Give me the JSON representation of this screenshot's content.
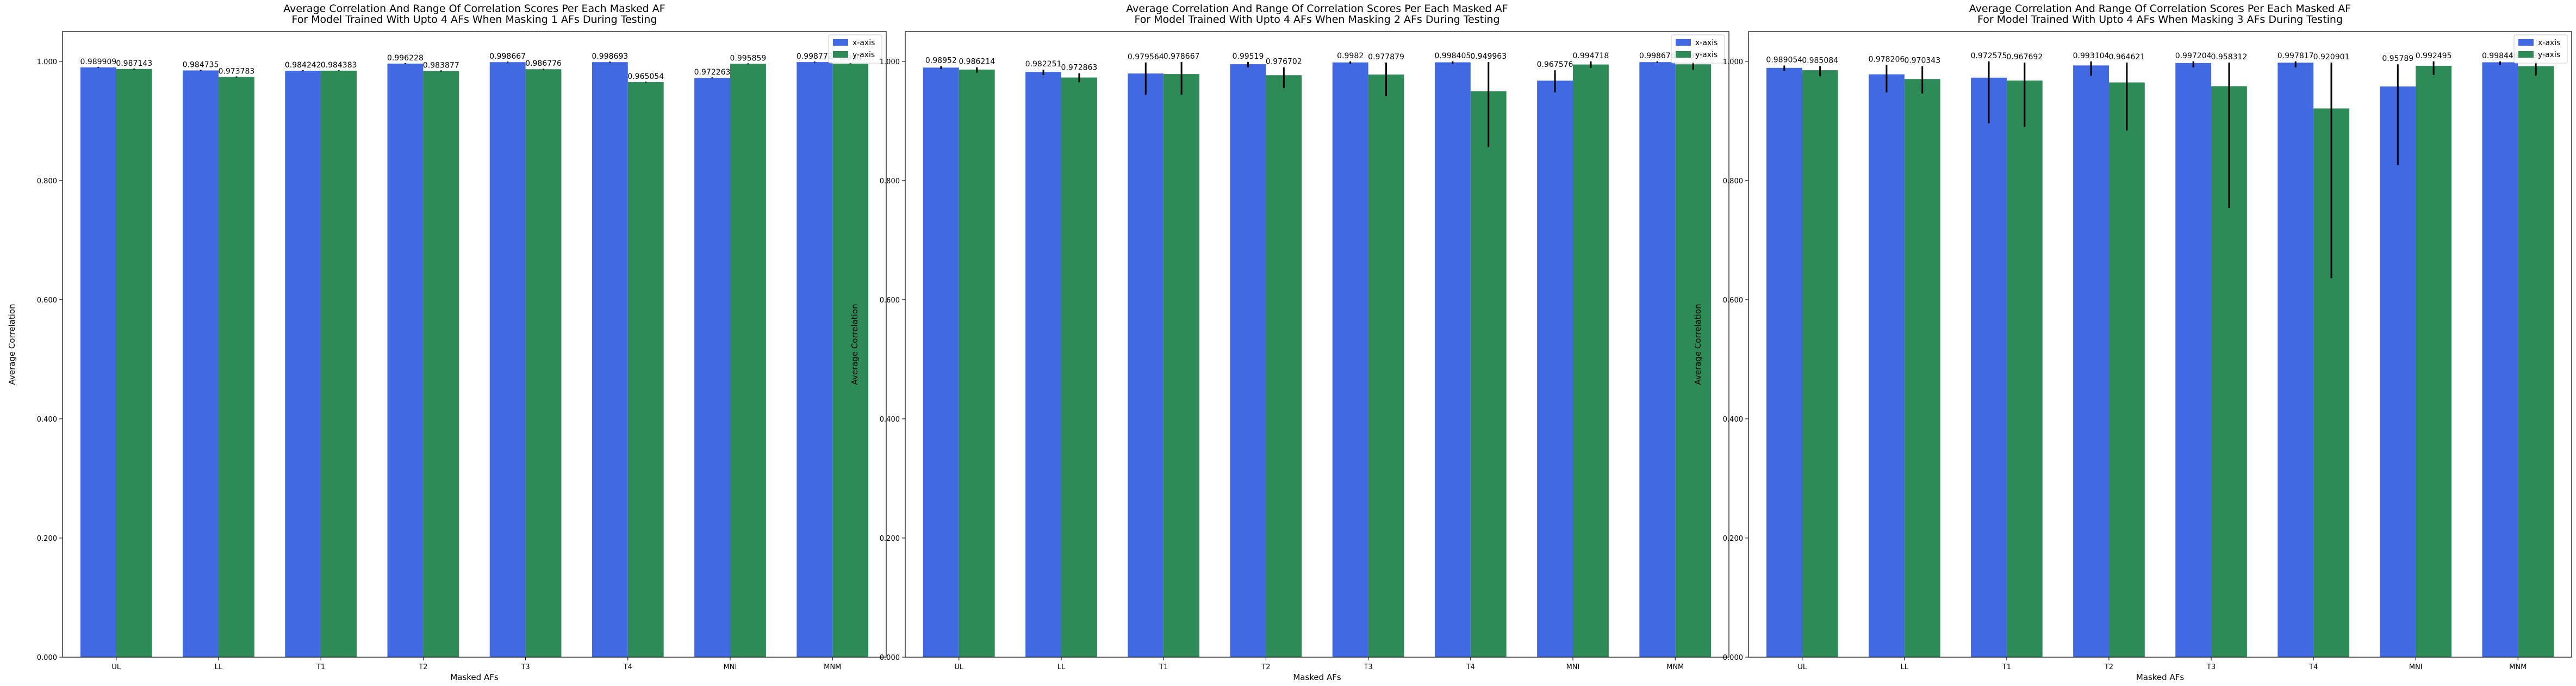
{
  "chart_data": [
    {
      "type": "bar",
      "title_lines": [
        "Average Correlation And Range Of Correlation Scores Per Each Masked AF",
        "For Model Trained With Upto 4 AFs When Masking 1 AFs During Testing"
      ],
      "xlabel": "Masked AFs",
      "ylabel": "Average Correlation",
      "ylim": [
        0,
        1.05
      ],
      "yticks": [
        "0.000",
        "0.200",
        "0.400",
        "0.600",
        "0.800",
        "1.000"
      ],
      "categories": [
        "UL",
        "LL",
        "T1",
        "T2",
        "T3",
        "T4",
        "MNI",
        "MNM"
      ],
      "legend_position": "top-right",
      "series": [
        {
          "name": "x-axis",
          "color": "#4169E1",
          "values": [
            0.989909,
            0.984735,
            0.984242,
            0.996228,
            0.998667,
            0.998693,
            0.972263,
            0.998772
          ],
          "labels": [
            "0.989909",
            "0.984735",
            "0.984242",
            "0.996228",
            "0.998667",
            "0.998693",
            "0.972263",
            "0.998772"
          ],
          "err_low": [
            0.989909,
            0.984735,
            0.984242,
            0.996228,
            0.998667,
            0.998693,
            0.972263,
            0.998772
          ],
          "err_high": [
            0.989909,
            0.984735,
            0.984242,
            0.996228,
            0.998667,
            0.998693,
            0.972263,
            0.998772
          ]
        },
        {
          "name": "y-axis",
          "color": "#2E8B57",
          "values": [
            0.987143,
            0.973783,
            0.984383,
            0.983877,
            0.986776,
            0.965054,
            0.995859,
            0.996
          ],
          "labels": [
            "0.987143",
            "0.973783",
            "0.984383",
            "0.983877",
            "0.986776",
            "0.965054",
            "0.995859",
            "0.996"
          ],
          "err_low": [
            0.987143,
            0.973783,
            0.984383,
            0.983877,
            0.986776,
            0.965054,
            0.995859,
            0.996
          ],
          "err_high": [
            0.987143,
            0.973783,
            0.984383,
            0.983877,
            0.986776,
            0.965054,
            0.995859,
            0.996
          ]
        }
      ]
    },
    {
      "type": "bar",
      "title_lines": [
        "Average Correlation And Range Of Correlation Scores Per Each Masked AF",
        "For Model Trained With Upto 4 AFs When Masking 2 AFs During Testing"
      ],
      "xlabel": "Masked AFs",
      "ylabel": "Average Correlation",
      "ylim": [
        0,
        1.05
      ],
      "yticks": [
        "0.000",
        "0.200",
        "0.400",
        "0.600",
        "0.800",
        "1.000"
      ],
      "categories": [
        "UL",
        "LL",
        "T1",
        "T2",
        "T3",
        "T4",
        "MNI",
        "MNM"
      ],
      "legend_position": "top-right",
      "series": [
        {
          "name": "x-axis",
          "color": "#4169E1",
          "values": [
            0.98952,
            0.982251,
            0.979564,
            0.99519,
            0.9982,
            0.998405,
            0.967576,
            0.998676
          ],
          "labels": [
            "0.98952",
            "0.982251",
            "0.979564",
            "0.99519",
            "0.9982",
            "0.998405",
            "0.967576",
            "0.998676"
          ],
          "err_low": [
            0.987,
            0.977,
            0.944,
            0.99,
            0.996,
            0.996,
            0.948,
            0.997
          ],
          "err_high": [
            0.992,
            0.986,
            0.998,
            0.999,
            1.0,
            1.0,
            0.985,
            1.0
          ]
        },
        {
          "name": "y-axis",
          "color": "#2E8B57",
          "values": [
            0.986214,
            0.972863,
            0.978667,
            0.976702,
            0.977879,
            0.949963,
            0.994718,
            0.995
          ],
          "labels": [
            "0.986214",
            "0.972863",
            "0.978667",
            "0.976702",
            "0.977879",
            "0.949963",
            "0.994718",
            "0.995"
          ],
          "err_low": [
            0.981,
            0.965,
            0.944,
            0.955,
            0.942,
            0.856,
            0.989,
            0.986
          ],
          "err_high": [
            0.99,
            0.98,
            0.999,
            0.99,
            0.998,
            0.999,
            1.0,
            1.0
          ]
        }
      ]
    },
    {
      "type": "bar",
      "title_lines": [
        "Average Correlation And Range Of Correlation Scores Per Each Masked AF",
        "For Model Trained With Upto 4 AFs When Masking 3 AFs During Testing"
      ],
      "xlabel": "Masked AFs",
      "ylabel": "Average Correlation",
      "ylim": [
        0,
        1.05
      ],
      "yticks": [
        "0.000",
        "0.200",
        "0.400",
        "0.600",
        "0.800",
        "1.000"
      ],
      "categories": [
        "UL",
        "LL",
        "T1",
        "T2",
        "T3",
        "T4",
        "MNI",
        "MNM"
      ],
      "legend_position": "top-right",
      "series": [
        {
          "name": "x-axis",
          "color": "#4169E1",
          "values": [
            0.989054,
            0.978206,
            0.972575,
            0.993104,
            0.997204,
            0.997817,
            0.95789,
            0.998446
          ],
          "labels": [
            "0.989054",
            "0.978206",
            "0.972575",
            "0.993104",
            "0.997204",
            "0.997817",
            "0.95789",
            "0.998446"
          ],
          "err_low": [
            0.984,
            0.948,
            0.896,
            0.976,
            0.99,
            0.99,
            0.826,
            0.994
          ],
          "err_high": [
            0.993,
            0.994,
            1.0,
            1.0,
            1.0,
            1.0,
            0.995,
            1.0
          ]
        },
        {
          "name": "y-axis",
          "color": "#2E8B57",
          "values": [
            0.985084,
            0.970343,
            0.967692,
            0.964621,
            0.958312,
            0.920901,
            0.992495,
            0.992
          ],
          "labels": [
            "0.985084",
            "0.970343",
            "0.967692",
            "0.964621",
            "0.958312",
            "0.920901",
            "0.992495",
            "0.992"
          ],
          "err_low": [
            0.975,
            0.946,
            0.89,
            0.884,
            0.754,
            0.636,
            0.977,
            0.976
          ],
          "err_high": [
            0.992,
            0.992,
            0.998,
            0.998,
            0.998,
            0.998,
            1.0,
            1.0
          ]
        }
      ]
    }
  ]
}
